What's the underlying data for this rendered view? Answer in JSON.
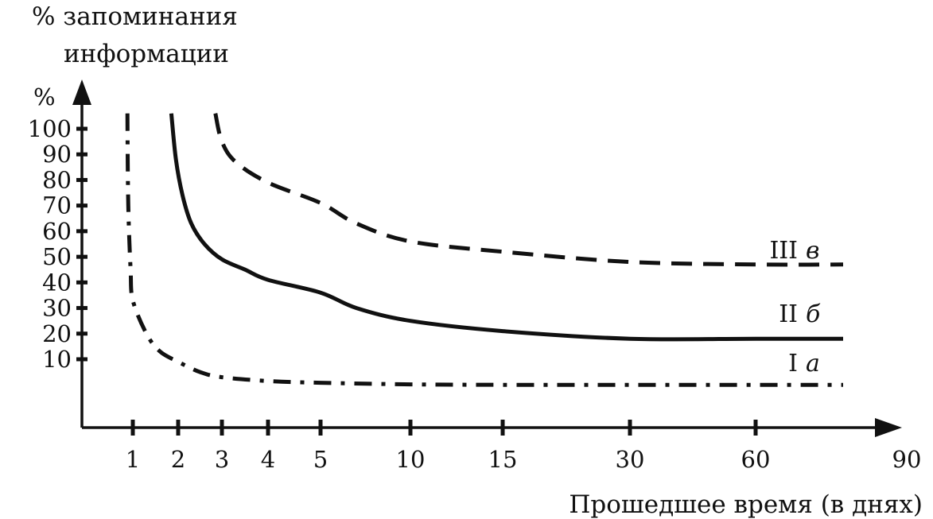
{
  "chart_data": {
    "type": "line",
    "title": "% запоминания информации",
    "title_lines": [
      "% запоминания",
      "информации"
    ],
    "ylabel": "%",
    "xlabel": "Прошедшее время (в днях)",
    "x_ticks": [
      1,
      2,
      3,
      4,
      5,
      10,
      15,
      30,
      60,
      90
    ],
    "y_ticks": [
      10,
      20,
      30,
      40,
      50,
      60,
      70,
      80,
      90,
      100
    ],
    "ylim": [
      -15,
      112
    ],
    "grid": false,
    "series": [
      {
        "name": "I",
        "letter": "а",
        "style": "dash-dot",
        "points": [
          [
            0.88,
            106
          ],
          [
            0.9,
            70
          ],
          [
            0.95,
            45
          ],
          [
            1.0,
            33
          ],
          [
            1.3,
            20
          ],
          [
            1.6,
            13
          ],
          [
            2.0,
            9
          ],
          [
            2.5,
            5
          ],
          [
            3.0,
            3
          ],
          [
            4.0,
            1.5
          ],
          [
            5.0,
            0.8
          ],
          [
            10,
            0.2
          ],
          [
            15,
            0
          ],
          [
            30,
            0
          ],
          [
            60,
            0
          ],
          [
            80,
            0
          ]
        ]
      },
      {
        "name": "II",
        "letter": "б",
        "style": "solid",
        "points": [
          [
            1.85,
            106
          ],
          [
            1.95,
            88
          ],
          [
            2.1,
            74
          ],
          [
            2.3,
            63
          ],
          [
            2.6,
            55
          ],
          [
            3.0,
            49
          ],
          [
            3.5,
            45
          ],
          [
            4.0,
            41
          ],
          [
            5.0,
            36
          ],
          [
            7.0,
            30
          ],
          [
            10,
            25
          ],
          [
            15,
            21
          ],
          [
            30,
            18
          ],
          [
            60,
            18
          ],
          [
            80,
            18
          ]
        ]
      },
      {
        "name": "III",
        "letter": "в",
        "style": "dashed",
        "points": [
          [
            2.85,
            106
          ],
          [
            3.0,
            95
          ],
          [
            3.3,
            87
          ],
          [
            4.0,
            79
          ],
          [
            5.0,
            71
          ],
          [
            7.0,
            63
          ],
          [
            10,
            56
          ],
          [
            15,
            52
          ],
          [
            30,
            48
          ],
          [
            60,
            47
          ],
          [
            80,
            47
          ]
        ]
      }
    ]
  }
}
